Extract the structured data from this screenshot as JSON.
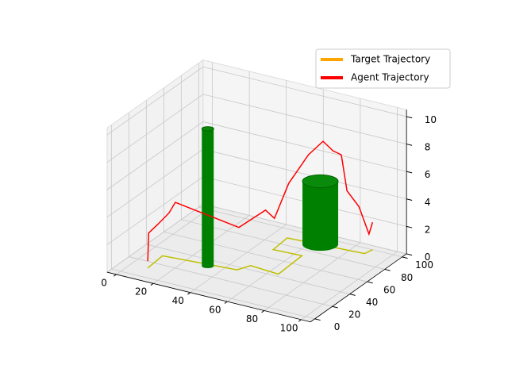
{
  "chart_data": {
    "type": "line3d",
    "xlim": [
      -5,
      105
    ],
    "ylim": [
      -5,
      105
    ],
    "zlim": [
      0,
      10.5
    ],
    "xticks": [
      0,
      20,
      40,
      60,
      80,
      100
    ],
    "yticks": [
      0,
      20,
      40,
      60,
      80,
      100
    ],
    "zticks": [
      0,
      2,
      4,
      6,
      8,
      10
    ],
    "grid": true,
    "legend": "upper right",
    "series": [
      {
        "name": "Target Trajectory",
        "color": "#bfbf00",
        "legend_color": "#ffa500",
        "x": [
          9,
          8,
          46,
          49,
          65,
          64,
          49,
          48,
          88,
          89
        ],
        "y": [
          12,
          31,
          36,
          45,
          43,
          72,
          71,
          89,
          93,
          100
        ],
        "z": [
          0,
          0,
          0,
          0,
          0,
          0,
          0,
          0,
          0,
          0
        ]
      },
      {
        "name": "Agent Trajectory",
        "color": "#ff0000",
        "legend_color": "#ff0000",
        "x": [
          9,
          9,
          10,
          12,
          14,
          46,
          50,
          52,
          55,
          60,
          66,
          70,
          74,
          78,
          84,
          88,
          89
        ],
        "y": [
          12,
          13,
          22,
          30,
          33,
          38,
          60,
          66,
          76,
          88,
          92,
          95,
          96,
          94,
          95,
          98,
          100
        ],
        "z": [
          0.5,
          2.5,
          2.8,
          3.3,
          4,
          3,
          3.4,
          2.6,
          4.8,
          6.5,
          7.5,
          6.8,
          6.6,
          4.2,
          3.2,
          1.2,
          2
        ]
      }
    ],
    "obstacles": [
      {
        "x": 32,
        "y": 32,
        "radius": 3,
        "height": 10,
        "color": "#008000"
      },
      {
        "x": 65,
        "y": 91,
        "radius": 9,
        "height": 4.6,
        "color": "#008000"
      }
    ]
  }
}
